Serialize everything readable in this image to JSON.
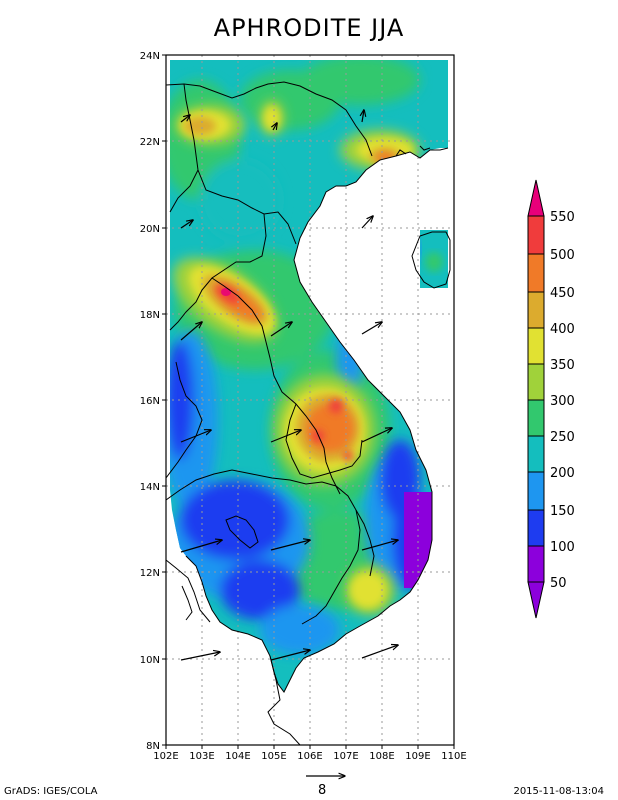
{
  "title": "APHRODITE JJA",
  "lat_labels": [
    "24N",
    "22N",
    "20N",
    "18N",
    "16N",
    "14N",
    "12N",
    "10N",
    "8N"
  ],
  "lon_labels": [
    "102E",
    "103E",
    "104E",
    "105E",
    "106E",
    "107E",
    "108E",
    "109E",
    "110E"
  ],
  "colorbar": {
    "levels": [
      "550",
      "500",
      "450",
      "400",
      "350",
      "300",
      "250",
      "200",
      "150",
      "100",
      "50"
    ],
    "colors": [
      "#e8007a",
      "#f03c3c",
      "#f07a28",
      "#dcab2e",
      "#e1e132",
      "#a0d23a",
      "#32c86e",
      "#14bebe",
      "#1e96f0",
      "#1e3cf0",
      "#8c00dc"
    ]
  },
  "wind_reference": {
    "value": "8"
  },
  "footer": {
    "left": "GrADS: IGES/COLA",
    "right": "2015-11-08-13:04"
  },
  "map": {
    "lon_range": [
      102,
      110
    ],
    "lat_range": [
      8,
      24
    ],
    "grid": true,
    "variable": "JJA precipitation (colorbar units)",
    "field_points": [
      {
        "lon": 103.3,
        "lat": 22.3,
        "v": 430
      },
      {
        "lon": 105.1,
        "lat": 22.8,
        "v": 380
      },
      {
        "lon": 107.4,
        "lat": 21.6,
        "v": 470
      },
      {
        "lon": 103.8,
        "lat": 18.4,
        "v": 560
      },
      {
        "lon": 104.5,
        "lat": 17.9,
        "v": 500
      },
      {
        "lon": 103.0,
        "lat": 18.7,
        "v": 360
      },
      {
        "lon": 106.9,
        "lat": 15.8,
        "v": 500
      },
      {
        "lon": 106.4,
        "lat": 15.1,
        "v": 470
      },
      {
        "lon": 107.1,
        "lat": 14.8,
        "v": 450
      },
      {
        "lon": 107.3,
        "lat": 11.7,
        "v": 380
      },
      {
        "lon": 109.0,
        "lat": 12.8,
        "v": 80
      },
      {
        "lon": 103.6,
        "lat": 12.8,
        "v": 130
      },
      {
        "lon": 104.5,
        "lat": 11.4,
        "v": 120
      },
      {
        "lon": 102.3,
        "lat": 16.0,
        "v": 150
      },
      {
        "lon": 109.5,
        "lat": 19.4,
        "v": 230
      }
    ]
  }
}
